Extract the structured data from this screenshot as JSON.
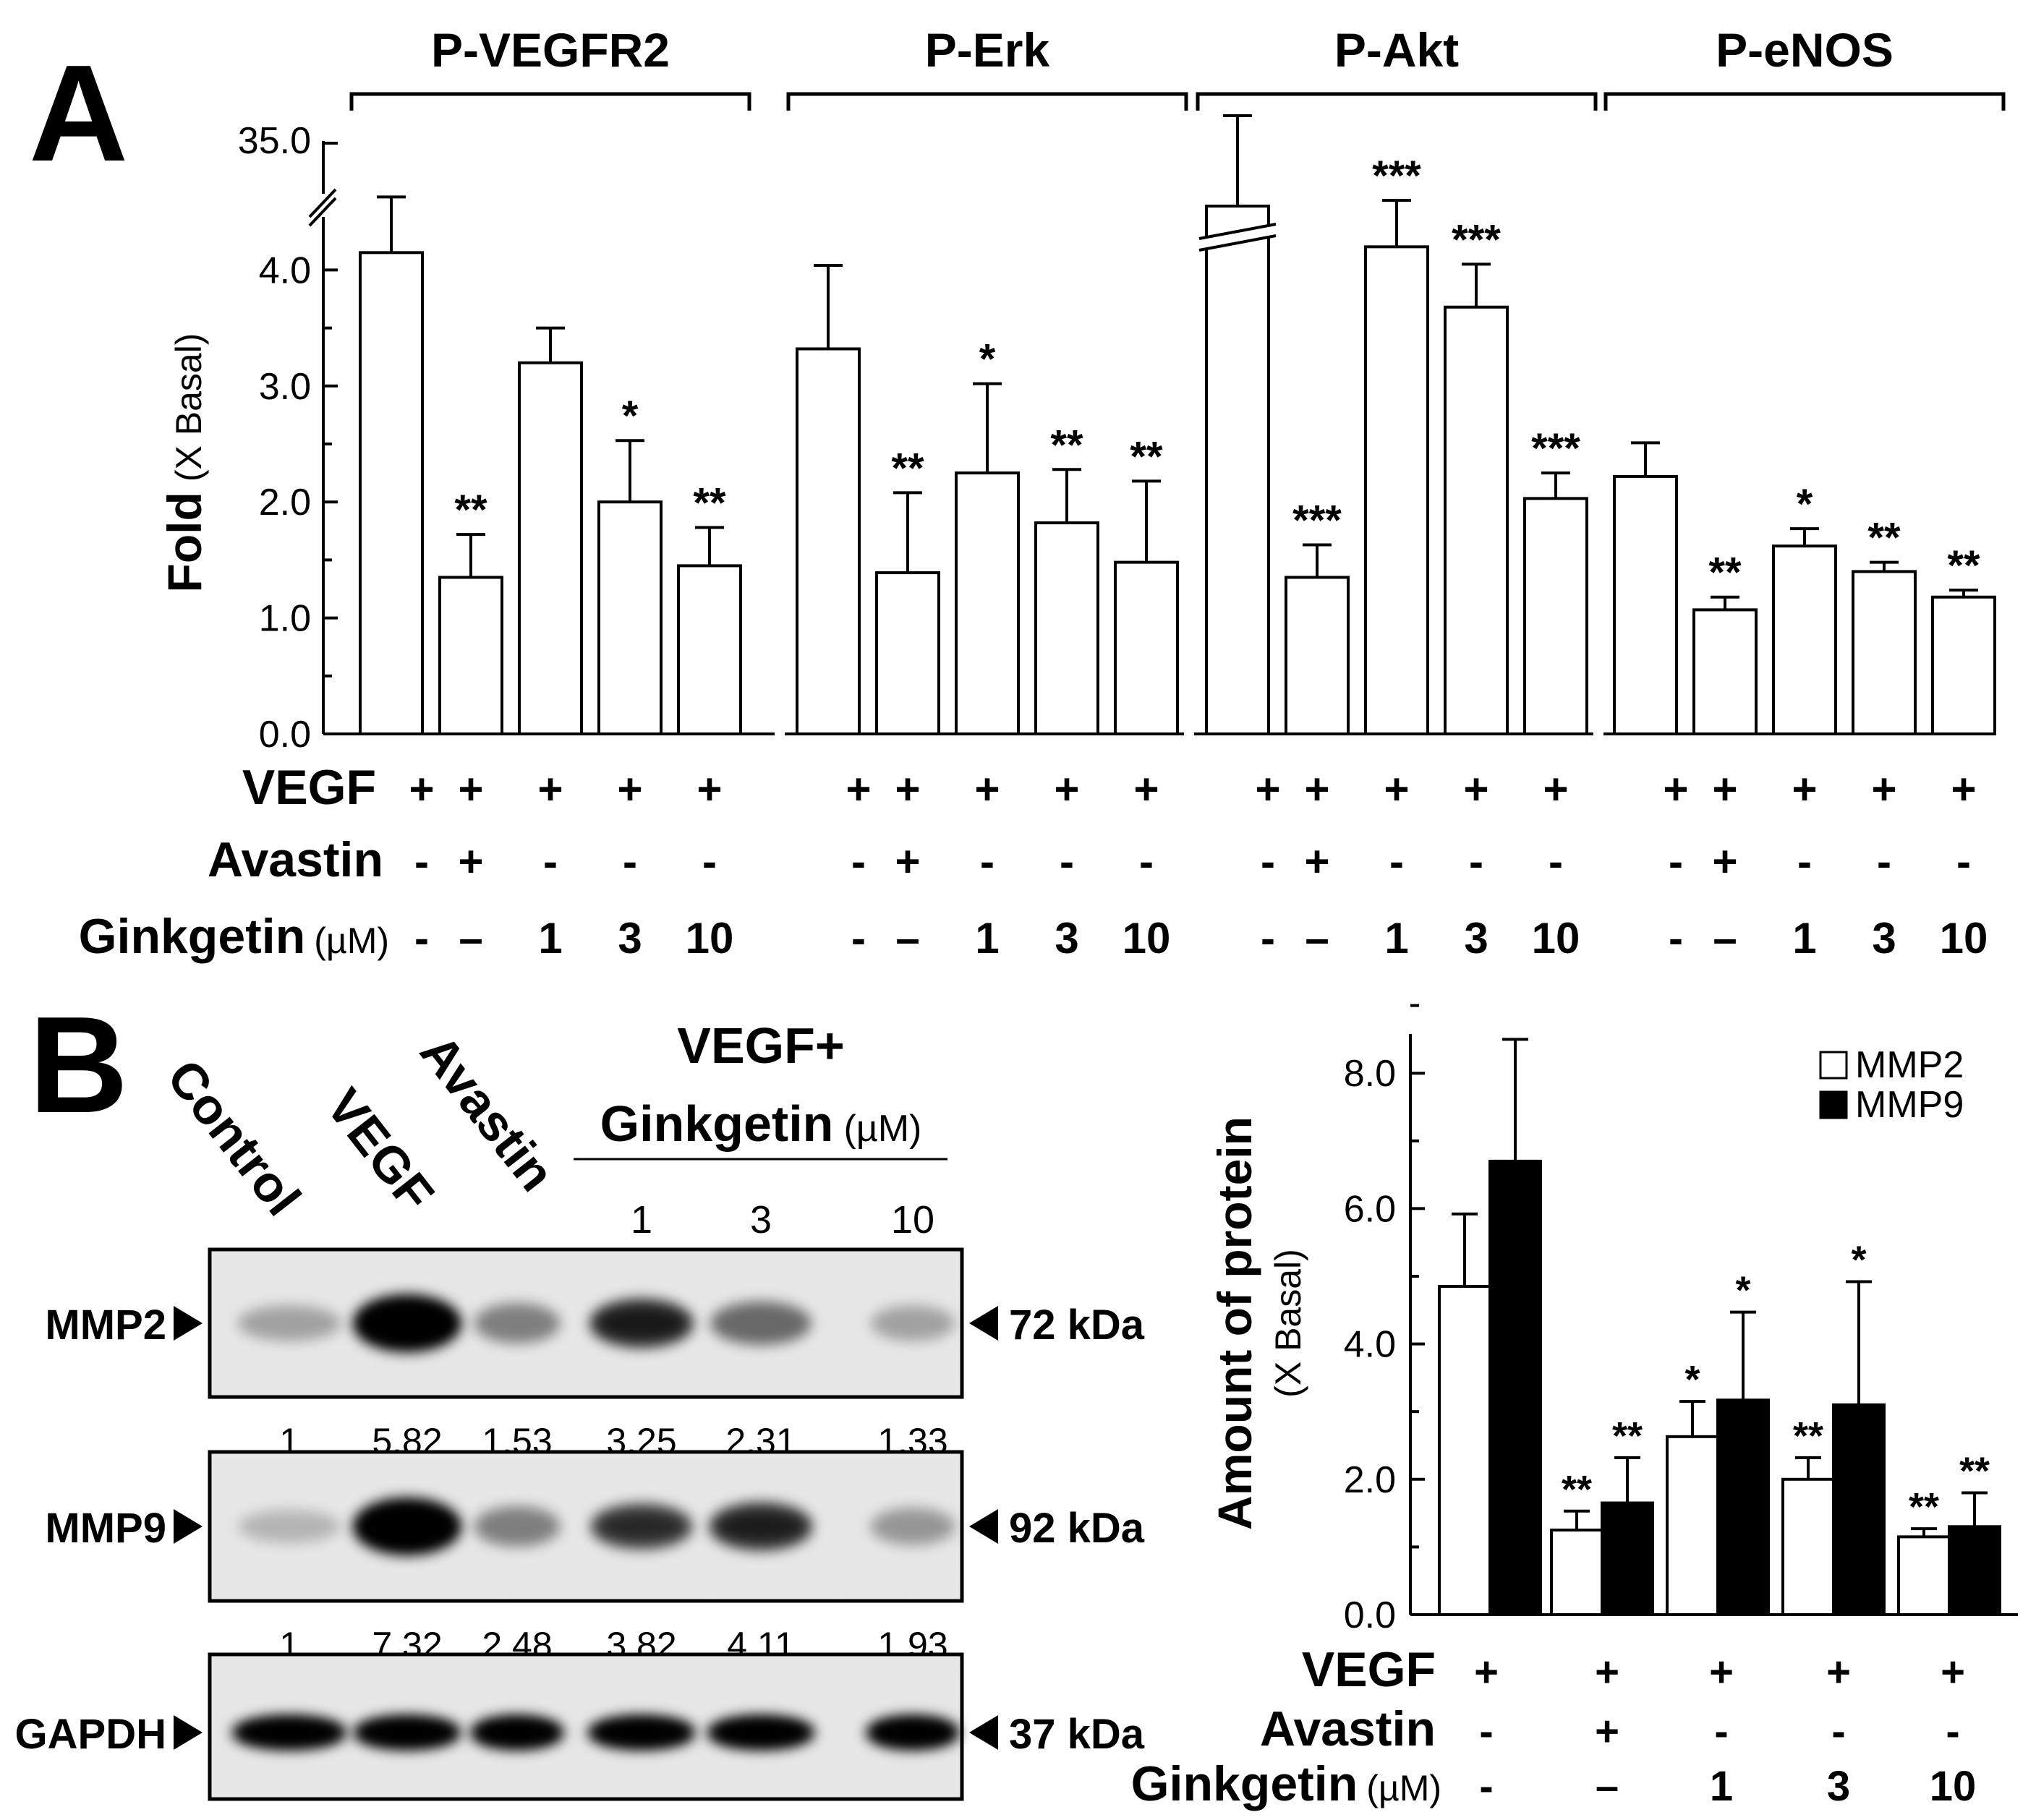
{
  "panel_labels": {
    "a": "A",
    "b": "B"
  },
  "colors": {
    "ink": "#000000",
    "bar_fill": "#ffffff",
    "mmp9_fill": "#000000"
  },
  "chart_data": [
    {
      "type": "bar",
      "title": "",
      "ylabel_main": "Fold",
      "ylabel_sub": "(X Basal)",
      "yticks": [
        "0.0",
        "1.0",
        "2.0",
        "3.0",
        "4.0"
      ],
      "ytop_label": "35.0",
      "ylim": [
        0,
        4.5
      ],
      "groups": [
        {
          "name": "P-VEGFR2",
          "values": [
            4.15,
            1.35,
            3.2,
            2.0,
            1.45
          ],
          "errors": [
            0.48,
            0.37,
            0.3,
            0.53,
            0.33
          ],
          "sig": [
            "",
            "**",
            "",
            "*",
            "**"
          ],
          "broken_first": false
        },
        {
          "name": "P-Erk",
          "values": [
            3.32,
            1.39,
            2.25,
            1.82,
            1.48
          ],
          "errors": [
            0.72,
            0.69,
            0.77,
            0.46,
            0.7
          ],
          "sig": [
            "",
            "**",
            "*",
            "**",
            "**"
          ],
          "broken_first": false
        },
        {
          "name": "P-Akt",
          "values": [
            4.5,
            1.35,
            4.2,
            3.68,
            2.03
          ],
          "errors": [
            0.8,
            0.28,
            0.4,
            0.37,
            0.22
          ],
          "sig": [
            "",
            "***",
            "***",
            "***",
            "***"
          ],
          "broken_first": true
        },
        {
          "name": "P-eNOS",
          "values": [
            2.22,
            1.07,
            1.62,
            1.4,
            1.18
          ],
          "errors": [
            0.29,
            0.11,
            0.15,
            0.08,
            0.06
          ],
          "sig": [
            "",
            "**",
            "*",
            "**",
            "**"
          ],
          "broken_first": false
        }
      ],
      "treatments": {
        "labels": {
          "vegf": "VEGF",
          "avastin": "Avastin",
          "ginkgetin": "Ginkgetin",
          "unit": "(µM)"
        },
        "vegf": [
          "+",
          "+",
          "+",
          "+",
          "+"
        ],
        "avastin": [
          "-",
          "+",
          "-",
          "-",
          "-"
        ],
        "ginkgetin": [
          "-",
          "–",
          "1",
          "3",
          "10"
        ]
      }
    },
    {
      "type": "bar",
      "title": "",
      "ylabel_main": "Amount of protein",
      "ylabel_sub": "(X Basal)",
      "yticks": [
        "0.0",
        "2.0",
        "4.0",
        "6.0",
        "8.0"
      ],
      "ylim": [
        0,
        8.8
      ],
      "categories": [
        "VEGF",
        "Avastin",
        "Ginkgetin 1",
        "Ginkgetin 3",
        "Ginkgetin 10"
      ],
      "series": [
        {
          "name": "MMP2",
          "values": [
            4.85,
            1.25,
            2.63,
            2.0,
            1.15
          ],
          "errors": [
            1.07,
            0.28,
            0.52,
            0.32,
            0.12
          ],
          "sig": [
            "",
            "**",
            "*",
            "**",
            "**"
          ]
        },
        {
          "name": "MMP9",
          "values": [
            6.7,
            1.65,
            3.17,
            3.1,
            1.3
          ],
          "errors": [
            1.8,
            0.67,
            1.3,
            1.82,
            0.5
          ],
          "sig": [
            "",
            "**",
            "*",
            "*",
            "**"
          ]
        }
      ],
      "treatments": {
        "labels": {
          "vegf": "VEGF",
          "avastin": "Avastin",
          "ginkgetin": "Ginkgetin",
          "unit": "(µM)"
        },
        "vegf": [
          "+",
          "+",
          "+",
          "+",
          "+"
        ],
        "avastin": [
          "-",
          "+",
          "-",
          "-",
          "-"
        ],
        "ginkgetin": [
          "-",
          "–",
          "1",
          "3",
          "10"
        ]
      }
    }
  ],
  "blot": {
    "lane_labels": [
      "Control",
      "VEGF",
      "Avastin"
    ],
    "group_header_1": "VEGF+",
    "group_header_2": "Ginkgetin",
    "group_unit": "(µM)",
    "doses": [
      "1",
      "3",
      "10"
    ],
    "rows": [
      {
        "name": "MMP2",
        "kda": "72 kDa",
        "intensity": [
          0.3,
          1.0,
          0.45,
          0.75,
          0.55,
          0.3
        ],
        "quant": [
          "1",
          "5.82",
          "1.53",
          "3.25",
          "2.31",
          "1.33"
        ]
      },
      {
        "name": "MMP9",
        "kda": "92 kDa",
        "intensity": [
          0.22,
          1.0,
          0.45,
          0.65,
          0.72,
          0.35
        ],
        "quant": [
          "1",
          "7.32",
          "2.48",
          "3.82",
          "4.11",
          "1.93"
        ]
      },
      {
        "name": "GAPDH",
        "kda": "37 kDa",
        "intensity": [
          1.0,
          1.0,
          1.0,
          1.0,
          1.0,
          1.0
        ],
        "quant": []
      }
    ]
  }
}
